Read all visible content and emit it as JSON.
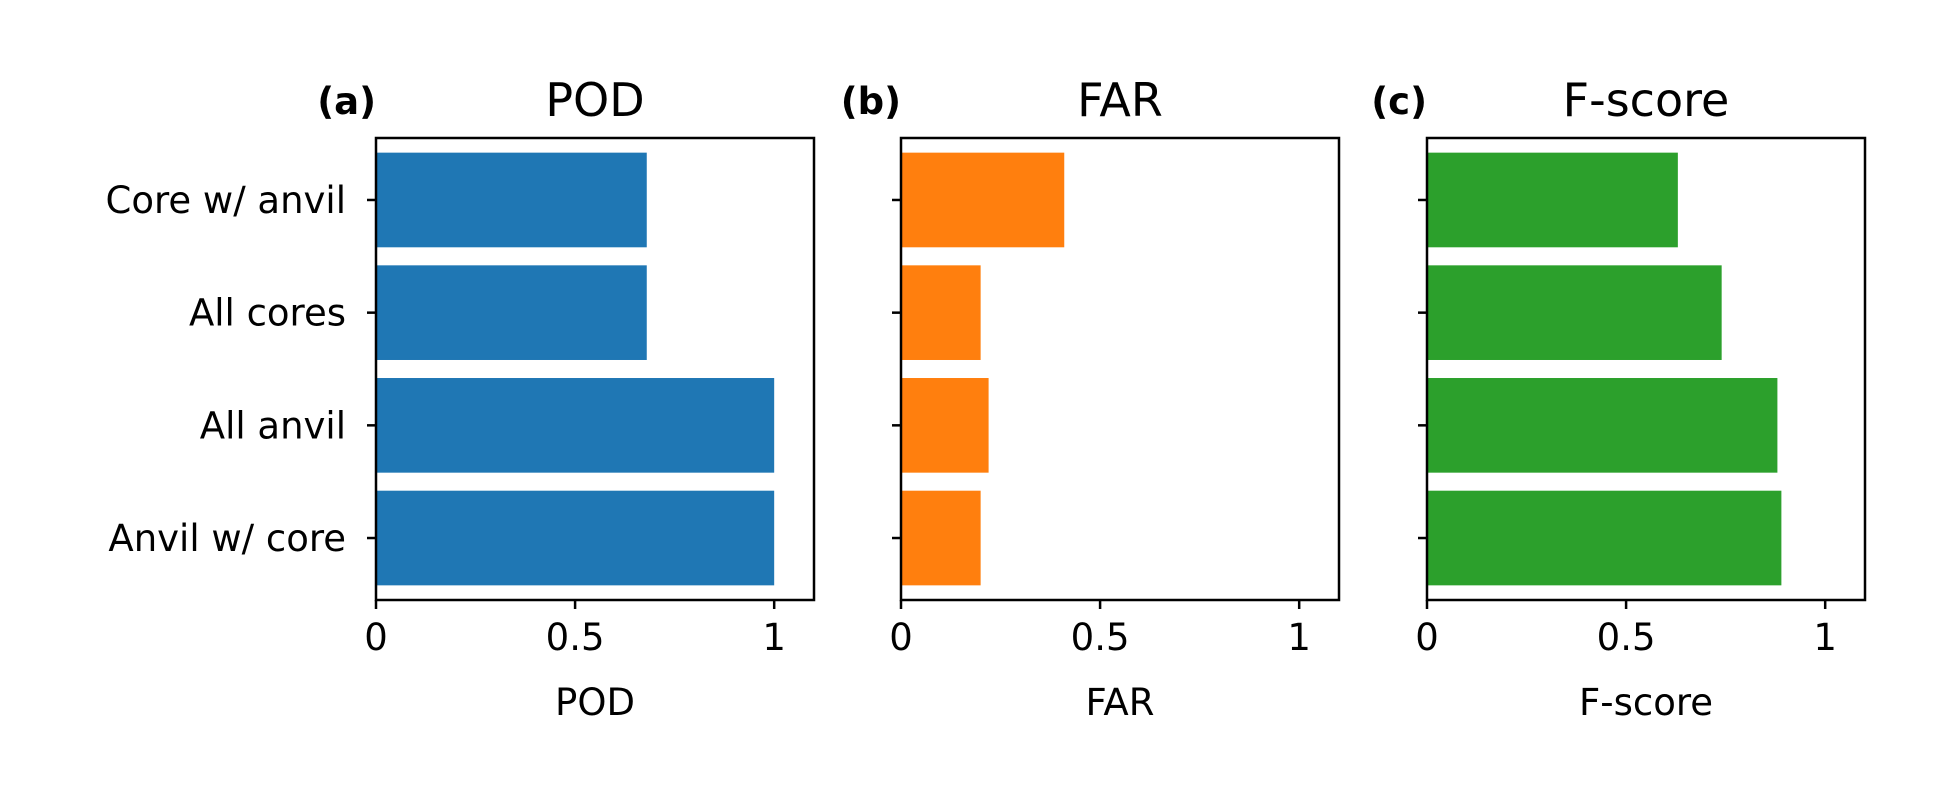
{
  "chart_data": [
    {
      "type": "bar",
      "orientation": "horizontal",
      "panel_label": "(a)",
      "title": "POD",
      "xlabel": "POD",
      "ylabel": "",
      "categories": [
        "Core w/ anvil",
        "All cores",
        "All anvil",
        "Anvil w/ core"
      ],
      "values": [
        0.68,
        0.68,
        1.0,
        1.0
      ],
      "xlim": [
        0,
        1.1
      ],
      "xticks": [
        0,
        0.5,
        1
      ],
      "xtick_labels": [
        "0",
        "0.5",
        "1"
      ],
      "color": "#1f77b4",
      "show_category_labels": true,
      "grid": false
    },
    {
      "type": "bar",
      "orientation": "horizontal",
      "panel_label": "(b)",
      "title": "FAR",
      "xlabel": "FAR",
      "ylabel": "",
      "categories": [
        "Core w/ anvil",
        "All cores",
        "All anvil",
        "Anvil w/ core"
      ],
      "values": [
        0.41,
        0.2,
        0.22,
        0.2
      ],
      "xlim": [
        0,
        1.1
      ],
      "xticks": [
        0,
        0.5,
        1
      ],
      "xtick_labels": [
        "0",
        "0.5",
        "1"
      ],
      "color": "#ff7f0e",
      "show_category_labels": false,
      "grid": false
    },
    {
      "type": "bar",
      "orientation": "horizontal",
      "panel_label": "(c)",
      "title": "F-score",
      "xlabel": "F-score",
      "ylabel": "",
      "categories": [
        "Core w/ anvil",
        "All cores",
        "All anvil",
        "Anvil w/ core"
      ],
      "values": [
        0.63,
        0.74,
        0.88,
        0.89
      ],
      "xlim": [
        0,
        1.1
      ],
      "xticks": [
        0,
        0.5,
        1
      ],
      "xtick_labels": [
        "0",
        "0.5",
        "1"
      ],
      "color": "#2ca02c",
      "show_category_labels": false,
      "grid": false
    }
  ]
}
